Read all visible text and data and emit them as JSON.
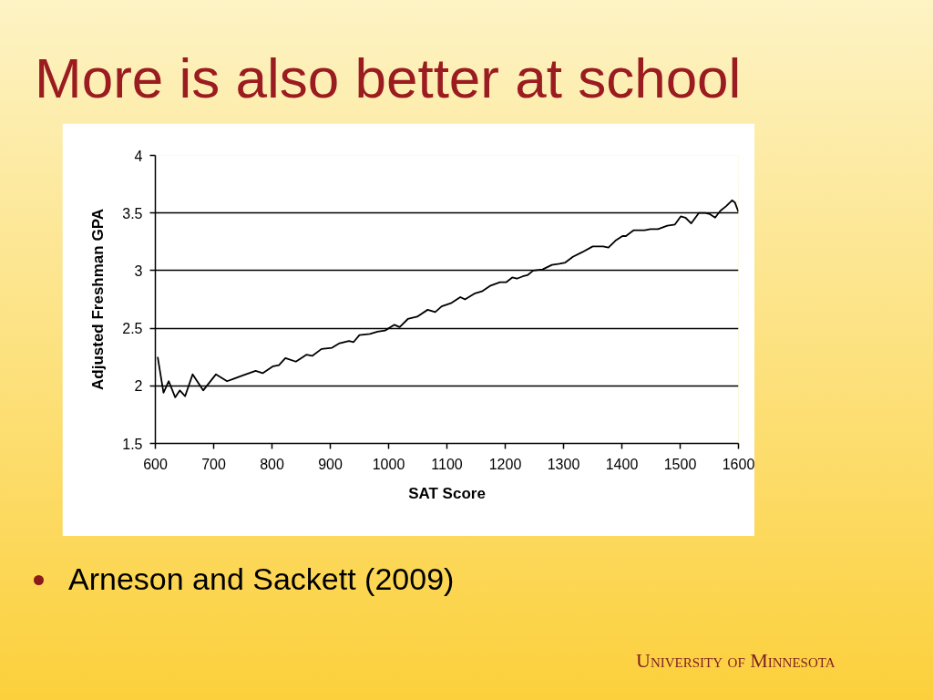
{
  "chart_data": {
    "type": "line",
    "title": "More is also better at school",
    "xlabel": "SAT Score",
    "ylabel": "Adjusted Freshman GPA",
    "x": [
      604,
      614,
      623,
      634,
      642,
      651,
      664,
      682,
      704,
      723,
      750,
      772,
      784,
      802,
      812,
      823,
      841,
      859,
      869,
      885,
      903,
      916,
      932,
      940,
      950,
      968,
      981,
      994,
      1010,
      1019,
      1033,
      1049,
      1067,
      1080,
      1091,
      1108,
      1123,
      1131,
      1147,
      1160,
      1175,
      1191,
      1202,
      1212,
      1220,
      1230,
      1238,
      1248,
      1264,
      1280,
      1293,
      1303,
      1316,
      1332,
      1350,
      1368,
      1377,
      1389,
      1401,
      1407,
      1420,
      1439,
      1449,
      1462,
      1478,
      1491,
      1501,
      1509,
      1519,
      1532,
      1543,
      1551,
      1560,
      1569,
      1579,
      1589,
      1594,
      1600
    ],
    "series": [
      {
        "color": "#000000",
        "values": [
          2.25,
          1.94,
          2.04,
          1.9,
          1.96,
          1.91,
          2.1,
          1.96,
          2.1,
          2.04,
          2.09,
          2.13,
          2.11,
          2.17,
          2.18,
          2.24,
          2.21,
          2.27,
          2.26,
          2.32,
          2.33,
          2.37,
          2.39,
          2.38,
          2.44,
          2.45,
          2.47,
          2.48,
          2.53,
          2.51,
          2.58,
          2.6,
          2.66,
          2.64,
          2.69,
          2.72,
          2.77,
          2.75,
          2.8,
          2.82,
          2.87,
          2.9,
          2.9,
          2.94,
          2.93,
          2.95,
          2.96,
          3.0,
          3.01,
          3.05,
          3.06,
          3.07,
          3.12,
          3.16,
          3.21,
          3.21,
          3.2,
          3.26,
          3.3,
          3.3,
          3.35,
          3.35,
          3.36,
          3.36,
          3.39,
          3.4,
          3.47,
          3.46,
          3.41,
          3.5,
          3.5,
          3.49,
          3.46,
          3.52,
          3.56,
          3.61,
          3.59,
          3.51
        ]
      }
    ],
    "xlim": [
      600,
      1600
    ],
    "ylim": [
      1.5,
      4
    ],
    "xticks": [
      600,
      700,
      800,
      900,
      1000,
      1100,
      1200,
      1300,
      1400,
      1500,
      1600
    ],
    "yticks": [
      1.5,
      2,
      2.5,
      3,
      3.5,
      4
    ],
    "grid": "y",
    "marker": "none",
    "line_style": "solid",
    "annotations": [
      "Arneson and Sackett (2009)",
      "University of Minnesota"
    ]
  }
}
